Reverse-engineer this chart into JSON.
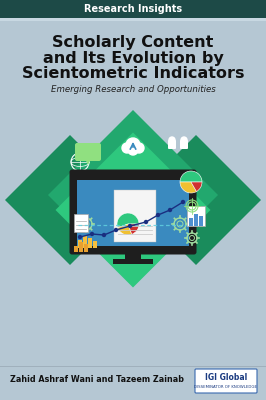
{
  "header_text": "Research Insights",
  "header_bg": "#1d4a47",
  "header_text_color": "#ffffff",
  "bg_color": "#b5c7d3",
  "title_line1": "Scholarly Content",
  "title_line2": "and Its Evolution by",
  "title_line3": "Scientometric Indicators",
  "subtitle": "Emerging Research and Opportunities",
  "author_text": "Zahid Ashraf Wani and Tazeem Zainab",
  "title_color": "#111111",
  "subtitle_color": "#222222",
  "author_color": "#111111",
  "diamond_dark": "#1a8c5c",
  "diamond_mid": "#22a86e",
  "diamond_light": "#2ec87e",
  "monitor_dark": "#1e1e1e",
  "monitor_screen": "#3a8abf",
  "doc_white": "#f5f5f5",
  "line_blue": "#1a2e80",
  "pie_green": "#2ec87e",
  "pie_yellow": "#f0c030",
  "pie_red": "#d03030",
  "icon_white": "#ffffff",
  "icon_light_green": "#90e080",
  "gear_color": "#a0dda0",
  "bar_icon_color": "#f5c040",
  "igi_border": "#3a6ab0",
  "igi_text": "#1a3a80"
}
